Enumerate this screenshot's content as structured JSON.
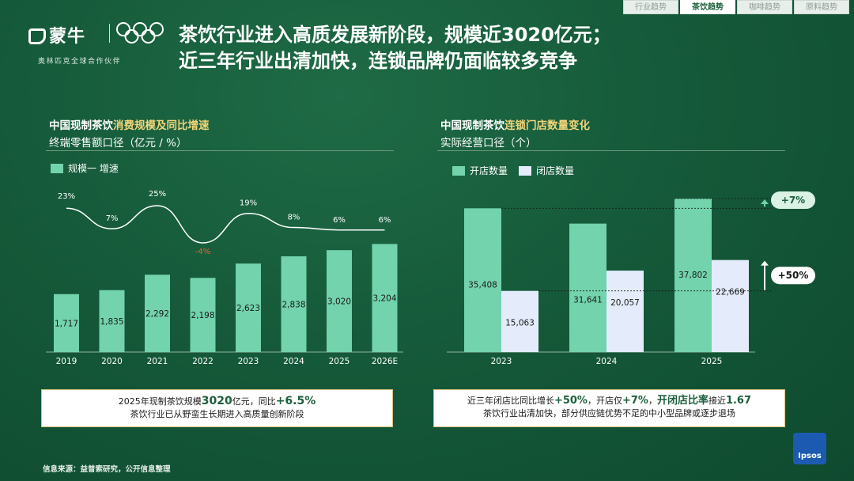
{
  "tabs": [
    {
      "label": "行业趋势",
      "active": false
    },
    {
      "label": "茶饮趋势",
      "active": true
    },
    {
      "label": "咖啡趋势",
      "active": false
    },
    {
      "label": "原料趋势",
      "active": false
    }
  ],
  "logo": {
    "brand": "蒙牛",
    "partner_text": "奥林匹克全球合作伙伴",
    "olympic_rings_icon": "olympic-rings-icon"
  },
  "title": {
    "line1": "茶饮行业进入高质发展新阶段，规模近3020亿元；",
    "line2": "近三年行业出清加快，连锁品牌仍面临较多竞争"
  },
  "left_panel": {
    "header_prefix": "中国现制茶饮",
    "header_highlight": "消费规模及同比增速",
    "subheader": "终端零售额口径（亿元 / %）",
    "legend_label": "规模一 增速",
    "bar_color": "#72d3ad",
    "summary": {
      "line1_prefix": "2025年现制茶饮规模",
      "line1_value": "3020",
      "line1_mid": "亿元，同比",
      "line1_rate": "+6.5%",
      "line2": "茶饮行业已从野蛮生长期进入高质量创新阶段"
    }
  },
  "right_panel": {
    "header_prefix": "中国现制茶饮",
    "header_highlight": "连锁门店数量变化",
    "subheader": "实际经营口径（个）",
    "legend_open": "开店数量",
    "legend_close": "闭店数量",
    "open_color": "#72d3ad",
    "close_color": "#e4ecfb",
    "summary": {
      "line1_a": "近三年闭店比同比增长",
      "line1_b": "+50%",
      "line1_c": "，开店仅",
      "line1_d": "+7%",
      "line1_e": "，",
      "line1_f": "开闭店比率",
      "line1_g": "接近",
      "line1_h": "1.67",
      "line2": "茶饮行业出清加快，部分供应链优势不足的中小型品牌或逐步退场"
    }
  },
  "source": "信息来源：益普索研究，公开信息整理",
  "ipsos_label": "Ipsos",
  "chart_data": [
    {
      "type": "bar",
      "title": "中国现制茶饮消费规模及同比增速",
      "subtitle": "终端零售额口径（亿元 / %）",
      "categories": [
        "2019",
        "2020",
        "2021",
        "2022",
        "2023",
        "2024",
        "2025",
        "2026E"
      ],
      "series": [
        {
          "name": "规模",
          "type": "bar",
          "values": [
            1717,
            1835,
            2292,
            2198,
            2623,
            2838,
            3020,
            3204
          ],
          "labels": [
            "1,717",
            "1,835",
            "2,292",
            "2,198",
            "2,623",
            "2,838",
            "3,020",
            "3,204"
          ]
        },
        {
          "name": "增速",
          "type": "line",
          "values": [
            23,
            7,
            25,
            -4,
            19,
            8,
            6,
            6
          ],
          "labels": [
            "23%",
            "7%",
            "25%",
            "-4%",
            "19%",
            "8%",
            "6%",
            "6%"
          ]
        }
      ],
      "negative_label_color": "#e8612c",
      "legend": "top-left"
    },
    {
      "type": "bar",
      "title": "中国现制茶饮连锁门店数量变化",
      "subtitle": "实际经营口径（个）",
      "categories": [
        "2023",
        "2024",
        "2025"
      ],
      "series": [
        {
          "name": "开店数量",
          "values": [
            35408,
            31641,
            37802
          ],
          "labels": [
            "35,408",
            "31,641",
            "37,802"
          ]
        },
        {
          "name": "闭店数量",
          "values": [
            15063,
            20057,
            22669
          ],
          "labels": [
            "15,063",
            "20,057",
            "22,669"
          ]
        }
      ],
      "annotations": [
        {
          "text": "+7%",
          "applies_to": "开店数量"
        },
        {
          "text": "+50%",
          "applies_to": "闭店数量"
        }
      ],
      "legend": "top-left"
    }
  ]
}
